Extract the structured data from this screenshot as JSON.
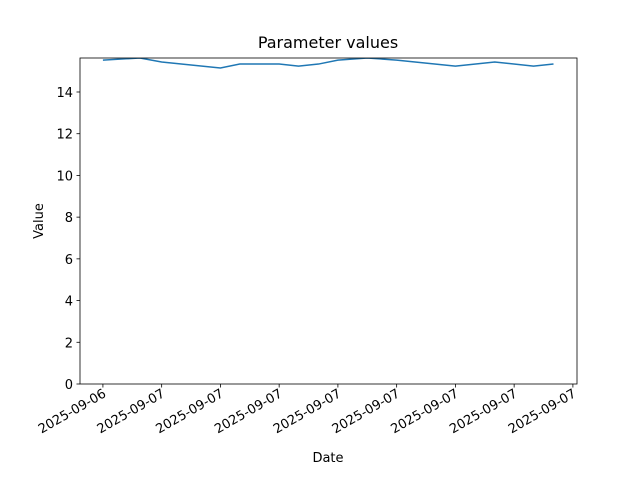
{
  "chart_data": {
    "type": "line",
    "title": "Parameter values",
    "x_label": "Date",
    "y_label": "Value",
    "x": [
      0,
      0.63,
      1,
      2,
      2.33,
      3,
      3.33,
      3.67,
      4,
      4.5,
      5,
      6,
      6.67,
      7.33,
      7.67
    ],
    "series": [
      {
        "name": "Value",
        "color": "#1f77b4",
        "values": [
          15.53,
          15.63,
          15.44,
          15.15,
          15.34,
          15.34,
          15.24,
          15.34,
          15.53,
          15.63,
          15.53,
          15.24,
          15.44,
          15.24,
          15.34
        ]
      }
    ],
    "xlim": [
      -0.39,
      8.07
    ],
    "xticks": [
      {
        "value": 0,
        "label": "2025-09-06"
      },
      {
        "value": 1,
        "label": "2025-09-07"
      },
      {
        "value": 2,
        "label": "2025-09-07"
      },
      {
        "value": 3,
        "label": "2025-09-07"
      },
      {
        "value": 4,
        "label": "2025-09-07"
      },
      {
        "value": 5,
        "label": "2025-09-07"
      },
      {
        "value": 6,
        "label": "2025-09-07"
      },
      {
        "value": 7,
        "label": "2025-09-07"
      },
      {
        "value": 8,
        "label": "2025-09-07"
      }
    ],
    "ylim": [
      0,
      15.63
    ],
    "yticks": [
      0,
      2,
      4,
      6,
      8,
      10,
      12,
      14
    ],
    "grid": false
  }
}
